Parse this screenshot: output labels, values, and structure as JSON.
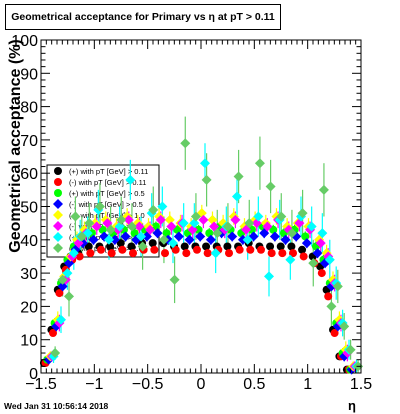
{
  "title": "Geometrical acceptance for Primary vs    η at pT > 0.11",
  "footer": "Wed Jan 31 10:56:14 2018",
  "chart_data": {
    "type": "scatter",
    "title": "Geometrical acceptance for Primary vs    η at pT > 0.11",
    "xlabel": "η",
    "ylabel": "Geometrical acceptance (%)",
    "xlim": [
      -1.5,
      1.5
    ],
    "ylim": [
      0,
      100
    ],
    "xticks": [
      "−1.5",
      "−1",
      "−0.5",
      "0",
      "0.5",
      "1",
      "1.5"
    ],
    "yticks": [
      "0",
      "10",
      "20",
      "30",
      "40",
      "50",
      "60",
      "70",
      "80",
      "90",
      "100"
    ],
    "grid": false,
    "legend_position": "center-left",
    "legend": [
      "(+) with pT [GeV] > 0.11",
      "(-) with pT [GeV] > 0.11",
      "(+) with pT [GeV] > 0.5",
      "(-) with pT [GeV] > 0.5",
      "(+) with pT [GeV] > 1.0",
      "(-) with pT [GeV] > 1.0",
      "(+) with pT [GeV] > 2.0",
      "(-) with pT [GeV] > 2.0"
    ],
    "series": [
      {
        "name": "(+) with pT [GeV] > 0.11",
        "color": "#000000",
        "marker": "circle",
        "x": [
          -1.42,
          -1.35,
          -1.29,
          -1.23,
          -1.17,
          -1.1,
          -1.0,
          -0.9,
          -0.8,
          -0.7,
          -0.6,
          -0.5,
          -0.4,
          -0.3,
          -0.2,
          -0.1,
          0.0,
          0.1,
          0.2,
          0.3,
          0.4,
          0.5,
          0.6,
          0.7,
          0.8,
          0.9,
          1.0,
          1.1,
          1.17,
          1.23,
          1.29,
          1.35,
          1.42
        ],
        "y": [
          3,
          13,
          25,
          32,
          35,
          36,
          38,
          38,
          38,
          39,
          38,
          39,
          39,
          39,
          38,
          38,
          38,
          38,
          38,
          38,
          38,
          39,
          38,
          38,
          38,
          38,
          37,
          35,
          32,
          25,
          13,
          5,
          1
        ],
        "yerr": [
          0.5,
          0.8,
          0.8,
          0.8,
          0.8,
          0.7,
          0.7,
          0.7,
          0.7,
          0.7,
          0.7,
          0.7,
          0.7,
          0.7,
          0.7,
          0.7,
          0.7,
          0.7,
          0.7,
          0.7,
          0.7,
          0.7,
          0.7,
          0.7,
          0.7,
          0.7,
          0.7,
          0.8,
          0.8,
          0.8,
          0.8,
          0.8,
          0.5
        ]
      },
      {
        "name": "(-) with pT [GeV] > 0.11",
        "color": "#ff0000",
        "marker": "circle",
        "x": [
          -1.42,
          -1.35,
          -1.29,
          -1.23,
          -1.17,
          -1.1,
          -1.0,
          -0.9,
          -0.8,
          -0.7,
          -0.6,
          -0.5,
          -0.4,
          -0.3,
          -0.2,
          -0.1,
          0.0,
          0.1,
          0.2,
          0.3,
          0.4,
          0.5,
          0.6,
          0.7,
          0.8,
          0.9,
          1.0,
          1.1,
          1.17,
          1.23,
          1.29,
          1.35,
          1.42
        ],
        "y": [
          3,
          12,
          24,
          31,
          34,
          35,
          36,
          37,
          36,
          37,
          36,
          37,
          37,
          36,
          37,
          36,
          37,
          36,
          37,
          36,
          37,
          37,
          37,
          36,
          36,
          36,
          35,
          33,
          30,
          23,
          12,
          5,
          1
        ],
        "yerr": [
          0.5,
          0.8,
          0.8,
          0.8,
          0.8,
          0.7,
          0.7,
          0.7,
          0.7,
          0.7,
          0.7,
          0.7,
          0.7,
          0.7,
          0.7,
          0.7,
          0.7,
          0.7,
          0.7,
          0.7,
          0.7,
          0.7,
          0.7,
          0.7,
          0.7,
          0.7,
          0.7,
          0.8,
          0.8,
          0.8,
          0.8,
          0.8,
          0.5
        ]
      },
      {
        "name": "(+) with pT [GeV] > 0.5",
        "color": "#00ff00",
        "marker": "circle",
        "x": [
          -1.42,
          -1.35,
          -1.29,
          -1.23,
          -1.17,
          -1.1,
          -1.0,
          -0.9,
          -0.8,
          -0.7,
          -0.6,
          -0.5,
          -0.4,
          -0.3,
          -0.2,
          -0.1,
          0.0,
          0.1,
          0.2,
          0.3,
          0.4,
          0.5,
          0.6,
          0.7,
          0.8,
          0.9,
          1.0,
          1.1,
          1.17,
          1.23,
          1.29,
          1.35,
          1.42
        ],
        "y": [
          4,
          15,
          27,
          34,
          38,
          40,
          42,
          43,
          42,
          43,
          42,
          43,
          44,
          42,
          43,
          42,
          43,
          42,
          44,
          43,
          42,
          43,
          44,
          43,
          42,
          43,
          41,
          38,
          34,
          27,
          15,
          6,
          1
        ],
        "yerr": [
          1,
          1.5,
          1.5,
          1.5,
          1.5,
          1.5,
          1.5,
          1.5,
          1.5,
          1.5,
          1.5,
          1.5,
          1.5,
          1.5,
          1.5,
          1.5,
          1.5,
          1.5,
          1.5,
          1.5,
          1.5,
          1.5,
          1.5,
          1.5,
          1.5,
          1.5,
          1.5,
          1.5,
          1.5,
          1.5,
          1.5,
          1.5,
          1
        ]
      },
      {
        "name": "(-) with pT [GeV] > 0.5",
        "color": "#0000ff",
        "marker": "diamond",
        "x": [
          -1.42,
          -1.35,
          -1.29,
          -1.23,
          -1.17,
          -1.1,
          -1.0,
          -0.9,
          -0.8,
          -0.7,
          -0.6,
          -0.5,
          -0.4,
          -0.3,
          -0.2,
          -0.1,
          0.0,
          0.1,
          0.2,
          0.3,
          0.4,
          0.5,
          0.6,
          0.7,
          0.8,
          0.9,
          1.0,
          1.1,
          1.17,
          1.23,
          1.29,
          1.35,
          1.42
        ],
        "y": [
          4,
          14,
          26,
          33,
          37,
          39,
          40,
          41,
          40,
          41,
          40,
          41,
          42,
          40,
          41,
          40,
          41,
          40,
          42,
          41,
          40,
          41,
          42,
          41,
          40,
          41,
          39,
          36,
          33,
          26,
          14,
          5,
          1
        ],
        "yerr": [
          1,
          1.5,
          1.5,
          1.5,
          1.5,
          1.5,
          1.5,
          1.5,
          1.5,
          1.5,
          1.5,
          1.5,
          1.5,
          1.5,
          1.5,
          1.5,
          1.5,
          1.5,
          1.5,
          1.5,
          1.5,
          1.5,
          1.5,
          1.5,
          1.5,
          1.5,
          1.5,
          1.5,
          1.5,
          1.5,
          1.5,
          1.5,
          1
        ]
      },
      {
        "name": "(+) with pT [GeV] > 1.0",
        "color": "#ffff00",
        "marker": "diamond",
        "x": [
          -1.42,
          -1.35,
          -1.29,
          -1.23,
          -1.17,
          -1.1,
          -1.0,
          -0.9,
          -0.8,
          -0.7,
          -0.6,
          -0.5,
          -0.4,
          -0.3,
          -0.2,
          -0.1,
          0.0,
          0.1,
          0.2,
          0.3,
          0.4,
          0.5,
          0.6,
          0.7,
          0.8,
          0.9,
          1.0,
          1.1,
          1.17,
          1.23,
          1.29,
          1.35,
          1.42
        ],
        "y": [
          5,
          16,
          29,
          35,
          40,
          43,
          45,
          46,
          44,
          47,
          45,
          44,
          47,
          46,
          45,
          44,
          48,
          46,
          45,
          47,
          44,
          46,
          45,
          47,
          44,
          45,
          44,
          40,
          36,
          28,
          16,
          7,
          2
        ],
        "yerr": [
          1.5,
          2.5,
          2.5,
          2.5,
          2.5,
          2.5,
          2.5,
          2.5,
          2.5,
          2.5,
          2.5,
          2.5,
          2.5,
          2.5,
          2.5,
          2.5,
          2.5,
          2.5,
          2.5,
          2.5,
          2.5,
          2.5,
          2.5,
          2.5,
          2.5,
          2.5,
          2.5,
          2.5,
          2.5,
          2.5,
          2.5,
          2.5,
          1.5
        ]
      },
      {
        "name": "(-) with pT [GeV] > 1.0",
        "color": "#ff00ff",
        "marker": "diamond",
        "x": [
          -1.42,
          -1.35,
          -1.29,
          -1.23,
          -1.17,
          -1.1,
          -1.0,
          -0.9,
          -0.8,
          -0.7,
          -0.6,
          -0.5,
          -0.4,
          -0.3,
          -0.2,
          -0.1,
          0.0,
          0.1,
          0.2,
          0.3,
          0.4,
          0.5,
          0.6,
          0.7,
          0.8,
          0.9,
          1.0,
          1.1,
          1.17,
          1.23,
          1.29,
          1.35,
          1.42
        ],
        "y": [
          5,
          15,
          28,
          35,
          39,
          42,
          44,
          45,
          43,
          46,
          44,
          43,
          46,
          44,
          45,
          43,
          46,
          44,
          43,
          46,
          43,
          45,
          44,
          46,
          43,
          45,
          43,
          39,
          35,
          27,
          15,
          6,
          2
        ],
        "yerr": [
          1.5,
          2.5,
          2.5,
          2.5,
          2.5,
          2.5,
          2.5,
          2.5,
          2.5,
          2.5,
          2.5,
          2.5,
          2.5,
          2.5,
          2.5,
          2.5,
          2.5,
          2.5,
          2.5,
          2.5,
          2.5,
          2.5,
          2.5,
          2.5,
          2.5,
          2.5,
          2.5,
          2.5,
          2.5,
          2.5,
          2.5,
          2.5,
          1.5
        ]
      },
      {
        "name": "(+) with pT [GeV] > 2.0",
        "color": "#00ffff",
        "marker": "diamond",
        "x": [
          -1.42,
          -1.35,
          -1.29,
          -1.23,
          -1.17,
          -1.1,
          -1.0,
          -0.9,
          -0.8,
          -0.7,
          -0.6,
          -0.5,
          -0.4,
          -0.3,
          -0.2,
          -0.1,
          0.0,
          0.1,
          0.2,
          0.3,
          0.4,
          0.5,
          0.6,
          0.7,
          0.8,
          0.9,
          1.0,
          1.1,
          1.17,
          1.23,
          1.29,
          1.35,
          1.42
        ],
        "y": [
          5,
          16,
          30,
          36,
          41,
          42,
          49,
          40,
          44,
          58,
          41,
          48,
          50,
          39,
          45,
          45,
          63,
          36,
          44,
          53,
          40,
          47,
          29,
          46,
          34,
          47,
          44,
          42,
          34,
          27,
          15,
          7,
          2
        ],
        "yerr": [
          2,
          4,
          5,
          5,
          5,
          5,
          6,
          6,
          6,
          6,
          6,
          6,
          6,
          6,
          6,
          6,
          6,
          6,
          6,
          6,
          6,
          6,
          6,
          6,
          6,
          6,
          6,
          6,
          6,
          5,
          4,
          3,
          2
        ]
      },
      {
        "name": "(-) with pT [GeV] > 2.0",
        "color": "#66cc66",
        "marker": "diamond",
        "x": [
          -1.42,
          -1.35,
          -1.29,
          -1.23,
          -1.17,
          -1.1,
          -1.0,
          -0.9,
          -0.8,
          -0.7,
          -0.6,
          -0.5,
          -0.4,
          -0.3,
          -0.2,
          -0.1,
          0.0,
          0.1,
          0.2,
          0.3,
          0.4,
          0.5,
          0.6,
          0.7,
          0.8,
          0.9,
          1.0,
          1.1,
          1.17,
          1.23,
          1.29,
          1.35,
          1.42
        ],
        "y": [
          6,
          28,
          23,
          47,
          41,
          45,
          50,
          43,
          46,
          44,
          38,
          49,
          40,
          28,
          69,
          47,
          58,
          42,
          44,
          59,
          45,
          63,
          56,
          47,
          42,
          48,
          33,
          55,
          20,
          26,
          14,
          7,
          2
        ],
        "yerr": [
          2,
          5,
          6,
          6,
          6,
          6,
          7,
          7,
          7,
          7,
          7,
          7,
          7,
          7,
          8,
          7,
          8,
          7,
          7,
          8,
          7,
          8,
          8,
          7,
          7,
          7,
          7,
          8,
          6,
          5,
          4,
          3,
          2
        ]
      }
    ]
  }
}
